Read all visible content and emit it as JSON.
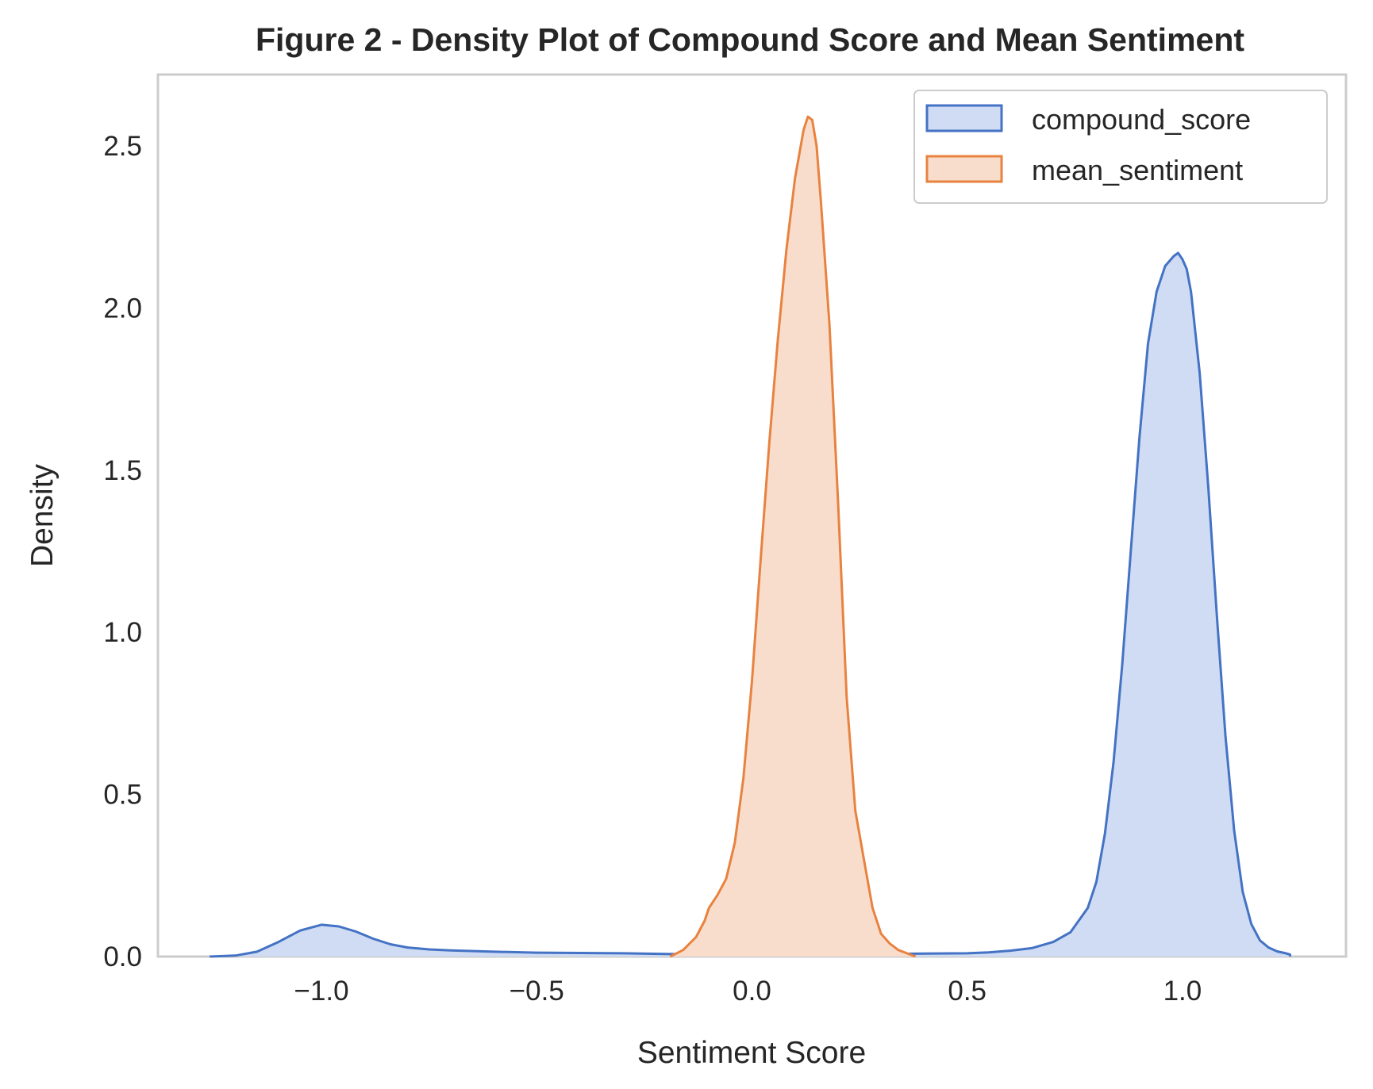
{
  "chart_data": {
    "type": "area",
    "title": "Figure 2 - Density Plot of Compound Score and Mean Sentiment",
    "xlabel": "Sentiment Score",
    "ylabel": "Density",
    "xlim": [
      -1.38,
      1.38
    ],
    "ylim": [
      0,
      2.72
    ],
    "grid": false,
    "legend_position": "top-right",
    "xticks": [
      {
        "value": -1.0,
        "label": "−1.0"
      },
      {
        "value": -0.5,
        "label": "−0.5"
      },
      {
        "value": 0.0,
        "label": "0.0"
      },
      {
        "value": 0.5,
        "label": "0.5"
      },
      {
        "value": 1.0,
        "label": "1.0"
      }
    ],
    "yticks": [
      {
        "value": 0.0,
        "label": "0.0"
      },
      {
        "value": 0.5,
        "label": "0.5"
      },
      {
        "value": 1.0,
        "label": "1.0"
      },
      {
        "value": 1.5,
        "label": "1.5"
      },
      {
        "value": 2.0,
        "label": "2.0"
      },
      {
        "value": 2.5,
        "label": "2.5"
      }
    ],
    "series": [
      {
        "name": "compound_score",
        "line_color": "#4472c4",
        "fill_color": "#cfdcf3",
        "x": [
          -1.26,
          -1.2,
          -1.15,
          -1.1,
          -1.05,
          -1.0,
          -0.96,
          -0.92,
          -0.88,
          -0.84,
          -0.8,
          -0.75,
          -0.7,
          -0.6,
          -0.5,
          -0.4,
          -0.3,
          -0.2,
          -0.1,
          0.0,
          0.1,
          0.2,
          0.3,
          0.4,
          0.5,
          0.55,
          0.6,
          0.65,
          0.7,
          0.74,
          0.78,
          0.8,
          0.82,
          0.84,
          0.86,
          0.88,
          0.9,
          0.92,
          0.94,
          0.96,
          0.98,
          0.99,
          1.0,
          1.01,
          1.02,
          1.04,
          1.06,
          1.08,
          1.1,
          1.12,
          1.14,
          1.16,
          1.18,
          1.2,
          1.22,
          1.24,
          1.25,
          1.25
        ],
        "y": [
          0.0,
          0.003,
          0.015,
          0.045,
          0.08,
          0.098,
          0.093,
          0.077,
          0.055,
          0.038,
          0.028,
          0.022,
          0.019,
          0.015,
          0.012,
          0.011,
          0.01,
          0.008,
          0.006,
          0.006,
          0.006,
          0.007,
          0.008,
          0.009,
          0.01,
          0.013,
          0.018,
          0.026,
          0.045,
          0.075,
          0.15,
          0.23,
          0.38,
          0.6,
          0.9,
          1.25,
          1.6,
          1.89,
          2.05,
          2.13,
          2.16,
          2.17,
          2.15,
          2.12,
          2.05,
          1.8,
          1.45,
          1.05,
          0.68,
          0.39,
          0.2,
          0.1,
          0.05,
          0.028,
          0.016,
          0.01,
          0.006,
          0.0
        ]
      },
      {
        "name": "mean_sentiment",
        "line_color": "#e8823f",
        "fill_color": "#f9ddcc",
        "x": [
          -0.19,
          -0.16,
          -0.13,
          -0.11,
          -0.1,
          -0.08,
          -0.06,
          -0.04,
          -0.02,
          0.0,
          0.02,
          0.04,
          0.06,
          0.08,
          0.1,
          0.12,
          0.13,
          0.14,
          0.15,
          0.16,
          0.18,
          0.2,
          0.22,
          0.24,
          0.26,
          0.28,
          0.3,
          0.32,
          0.34,
          0.36,
          0.38
        ],
        "y": [
          0.0,
          0.02,
          0.06,
          0.11,
          0.15,
          0.19,
          0.24,
          0.35,
          0.55,
          0.85,
          1.22,
          1.58,
          1.9,
          2.18,
          2.4,
          2.55,
          2.59,
          2.58,
          2.5,
          2.33,
          1.95,
          1.4,
          0.8,
          0.45,
          0.3,
          0.15,
          0.07,
          0.04,
          0.02,
          0.01,
          0.0
        ]
      }
    ]
  }
}
